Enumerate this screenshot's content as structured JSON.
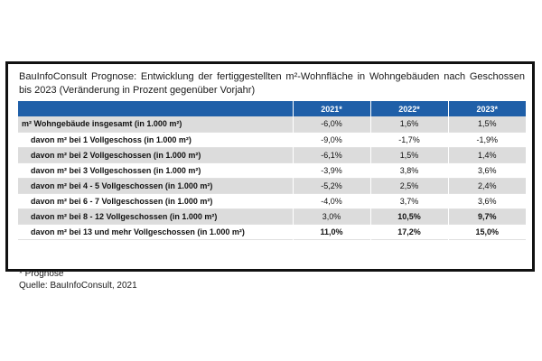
{
  "title": {
    "line1": "BauInfoConsult Prognose: Entwicklung der fertiggestellten m²-Wohnfläche in Wohngebäuden nach Geschossen",
    "line2": "bis 2023 (Veränderung in Prozent gegenüber Vorjahr)"
  },
  "table": {
    "headers": [
      "",
      "2021*",
      "2022*",
      "2023*"
    ],
    "rows": [
      {
        "label": "m² Wohngebäude insgesamt (in 1.000 m²)",
        "v2021": "-6,0%",
        "v2022": "1,6%",
        "v2023": "1,5%"
      },
      {
        "label": "davon m² bei 1 Vollgeschoss (in 1.000 m²)",
        "v2021": "-9,0%",
        "v2022": "-1,7%",
        "v2023": "-1,9%"
      },
      {
        "label": "davon m² bei 2 Vollgeschossen (in 1.000 m²)",
        "v2021": "-6,1%",
        "v2022": "1,5%",
        "v2023": "1,4%"
      },
      {
        "label": "davon m² bei 3 Vollgeschossen (in 1.000 m²)",
        "v2021": "-3,9%",
        "v2022": "3,8%",
        "v2023": "3,6%"
      },
      {
        "label": "davon m² bei 4 - 5 Vollgeschossen (in 1.000 m²)",
        "v2021": "-5,2%",
        "v2022": "2,5%",
        "v2023": "2,4%"
      },
      {
        "label": "davon m² bei 6 - 7 Vollgeschossen (in 1.000 m²)",
        "v2021": "-4,0%",
        "v2022": "3,7%",
        "v2023": "3,6%"
      },
      {
        "label": "davon m² bei 8 - 12 Vollgeschossen (in 1.000 m²)",
        "v2021": "3,0%",
        "v2022": "10,5%",
        "v2023": "9,7%"
      },
      {
        "label": "davon m² bei 13 und mehr Vollgeschossen (in 1.000 m²)",
        "v2021": "11,0%",
        "v2022": "17,2%",
        "v2023": "15,0%"
      }
    ]
  },
  "notes": {
    "footnote": "* Prognose",
    "source": "Quelle: BauInfoConsult, 2021"
  }
}
